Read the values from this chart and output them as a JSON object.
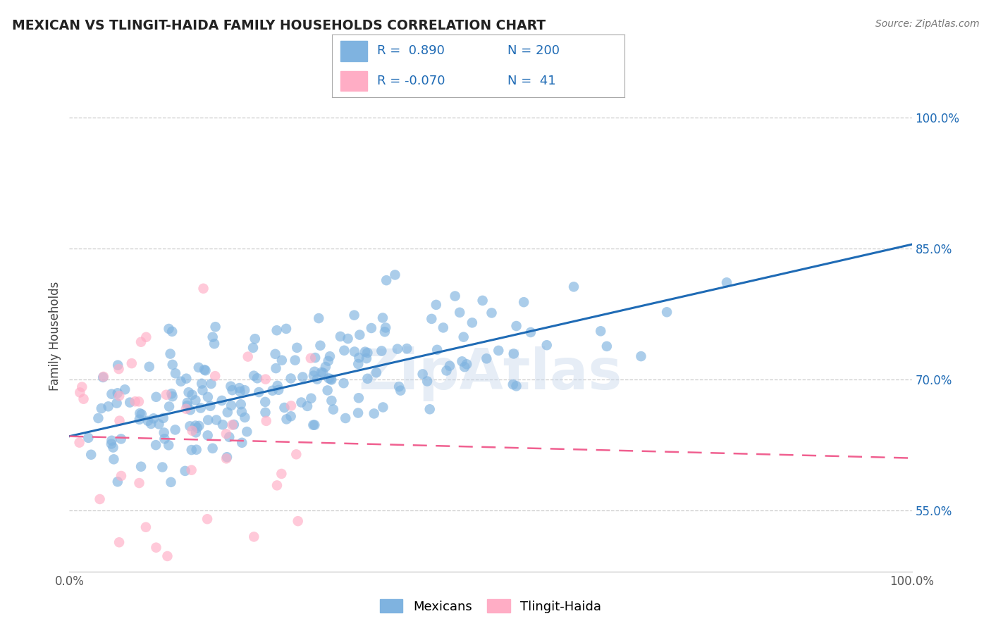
{
  "title": "MEXICAN VS TLINGIT-HAIDA FAMILY HOUSEHOLDS CORRELATION CHART",
  "source": "Source: ZipAtlas.com",
  "ylabel": "Family Households",
  "xlim": [
    0.0,
    1.0
  ],
  "ylim": [
    0.48,
    1.02
  ],
  "x_tick_labels": [
    "0.0%",
    "100.0%"
  ],
  "y_tick_labels": [
    "55.0%",
    "70.0%",
    "85.0%",
    "100.0%"
  ],
  "y_tick_positions": [
    0.55,
    0.7,
    0.85,
    1.0
  ],
  "watermark": "ZipAtlas",
  "blue_color": "#7FB3E0",
  "pink_color": "#FFADC5",
  "line_blue": "#1F6BB5",
  "line_pink": "#F06090",
  "background_color": "#FFFFFF",
  "mexicans_slope": 0.22,
  "mexicans_intercept": 0.635,
  "tlingit_slope": -0.025,
  "tlingit_intercept": 0.635
}
